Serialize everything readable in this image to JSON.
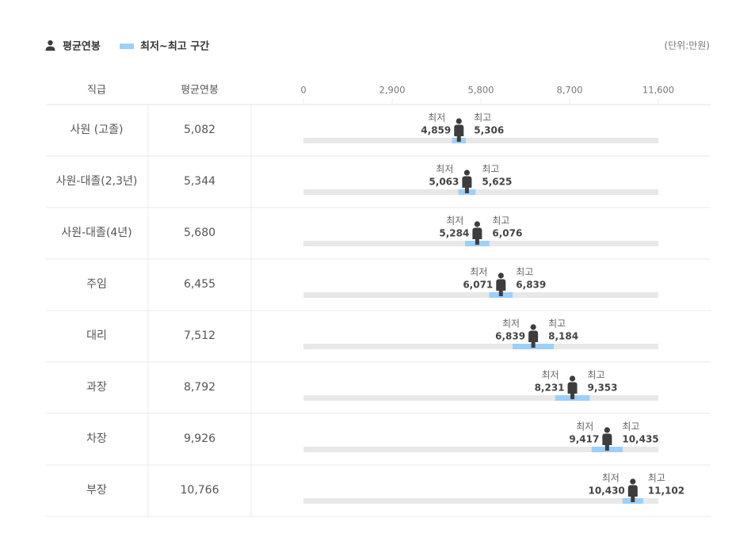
{
  "chart_data": {
    "type": "range",
    "unit": "(단위:만원)",
    "column_headers": [
      "직급",
      "평균연봉"
    ],
    "categories": [
      "사원 (고졸)",
      "사원-대졸(2,3년)",
      "사원-대졸(4년)",
      "주임",
      "대리",
      "과장",
      "차장",
      "부장"
    ],
    "avg": {
      "name": "평균연봉",
      "color": "#3d3d3d",
      "values": [
        5082,
        5344,
        5680,
        6455,
        7512,
        8792,
        9926,
        10766
      ],
      "value_labels": [
        "5,082",
        "5,344",
        "5,680",
        "6,455",
        "7,512",
        "8,792",
        "9,926",
        "10,766"
      ]
    },
    "range": {
      "name": "최저~최고 구간",
      "color": "#9ccffa",
      "low": [
        4859,
        5063,
        5284,
        6071,
        6839,
        8231,
        9417,
        10430
      ],
      "low_labels": [
        "4,859",
        "5,063",
        "5,284",
        "6,071",
        "6,839",
        "8,231",
        "9,417",
        "10,430"
      ],
      "high": [
        5306,
        5625,
        6076,
        6839,
        8184,
        9353,
        10435,
        11102
      ],
      "high_labels": [
        "5,306",
        "5,625",
        "6,076",
        "6,839",
        "8,184",
        "9,353",
        "10,435",
        "11,102"
      ]
    },
    "low_caption": "최저",
    "high_caption": "최고",
    "track_color": "#e8e8e8",
    "xlim": [
      0,
      11600
    ],
    "xticks": [
      0,
      {
        "value": 2900,
        "label": "2,900"
      },
      {
        "value": 5800,
        "label": "5,800"
      },
      {
        "value": 8700,
        "label": "8,700"
      },
      {
        "value": 11600,
        "label": "11,600"
      }
    ]
  }
}
